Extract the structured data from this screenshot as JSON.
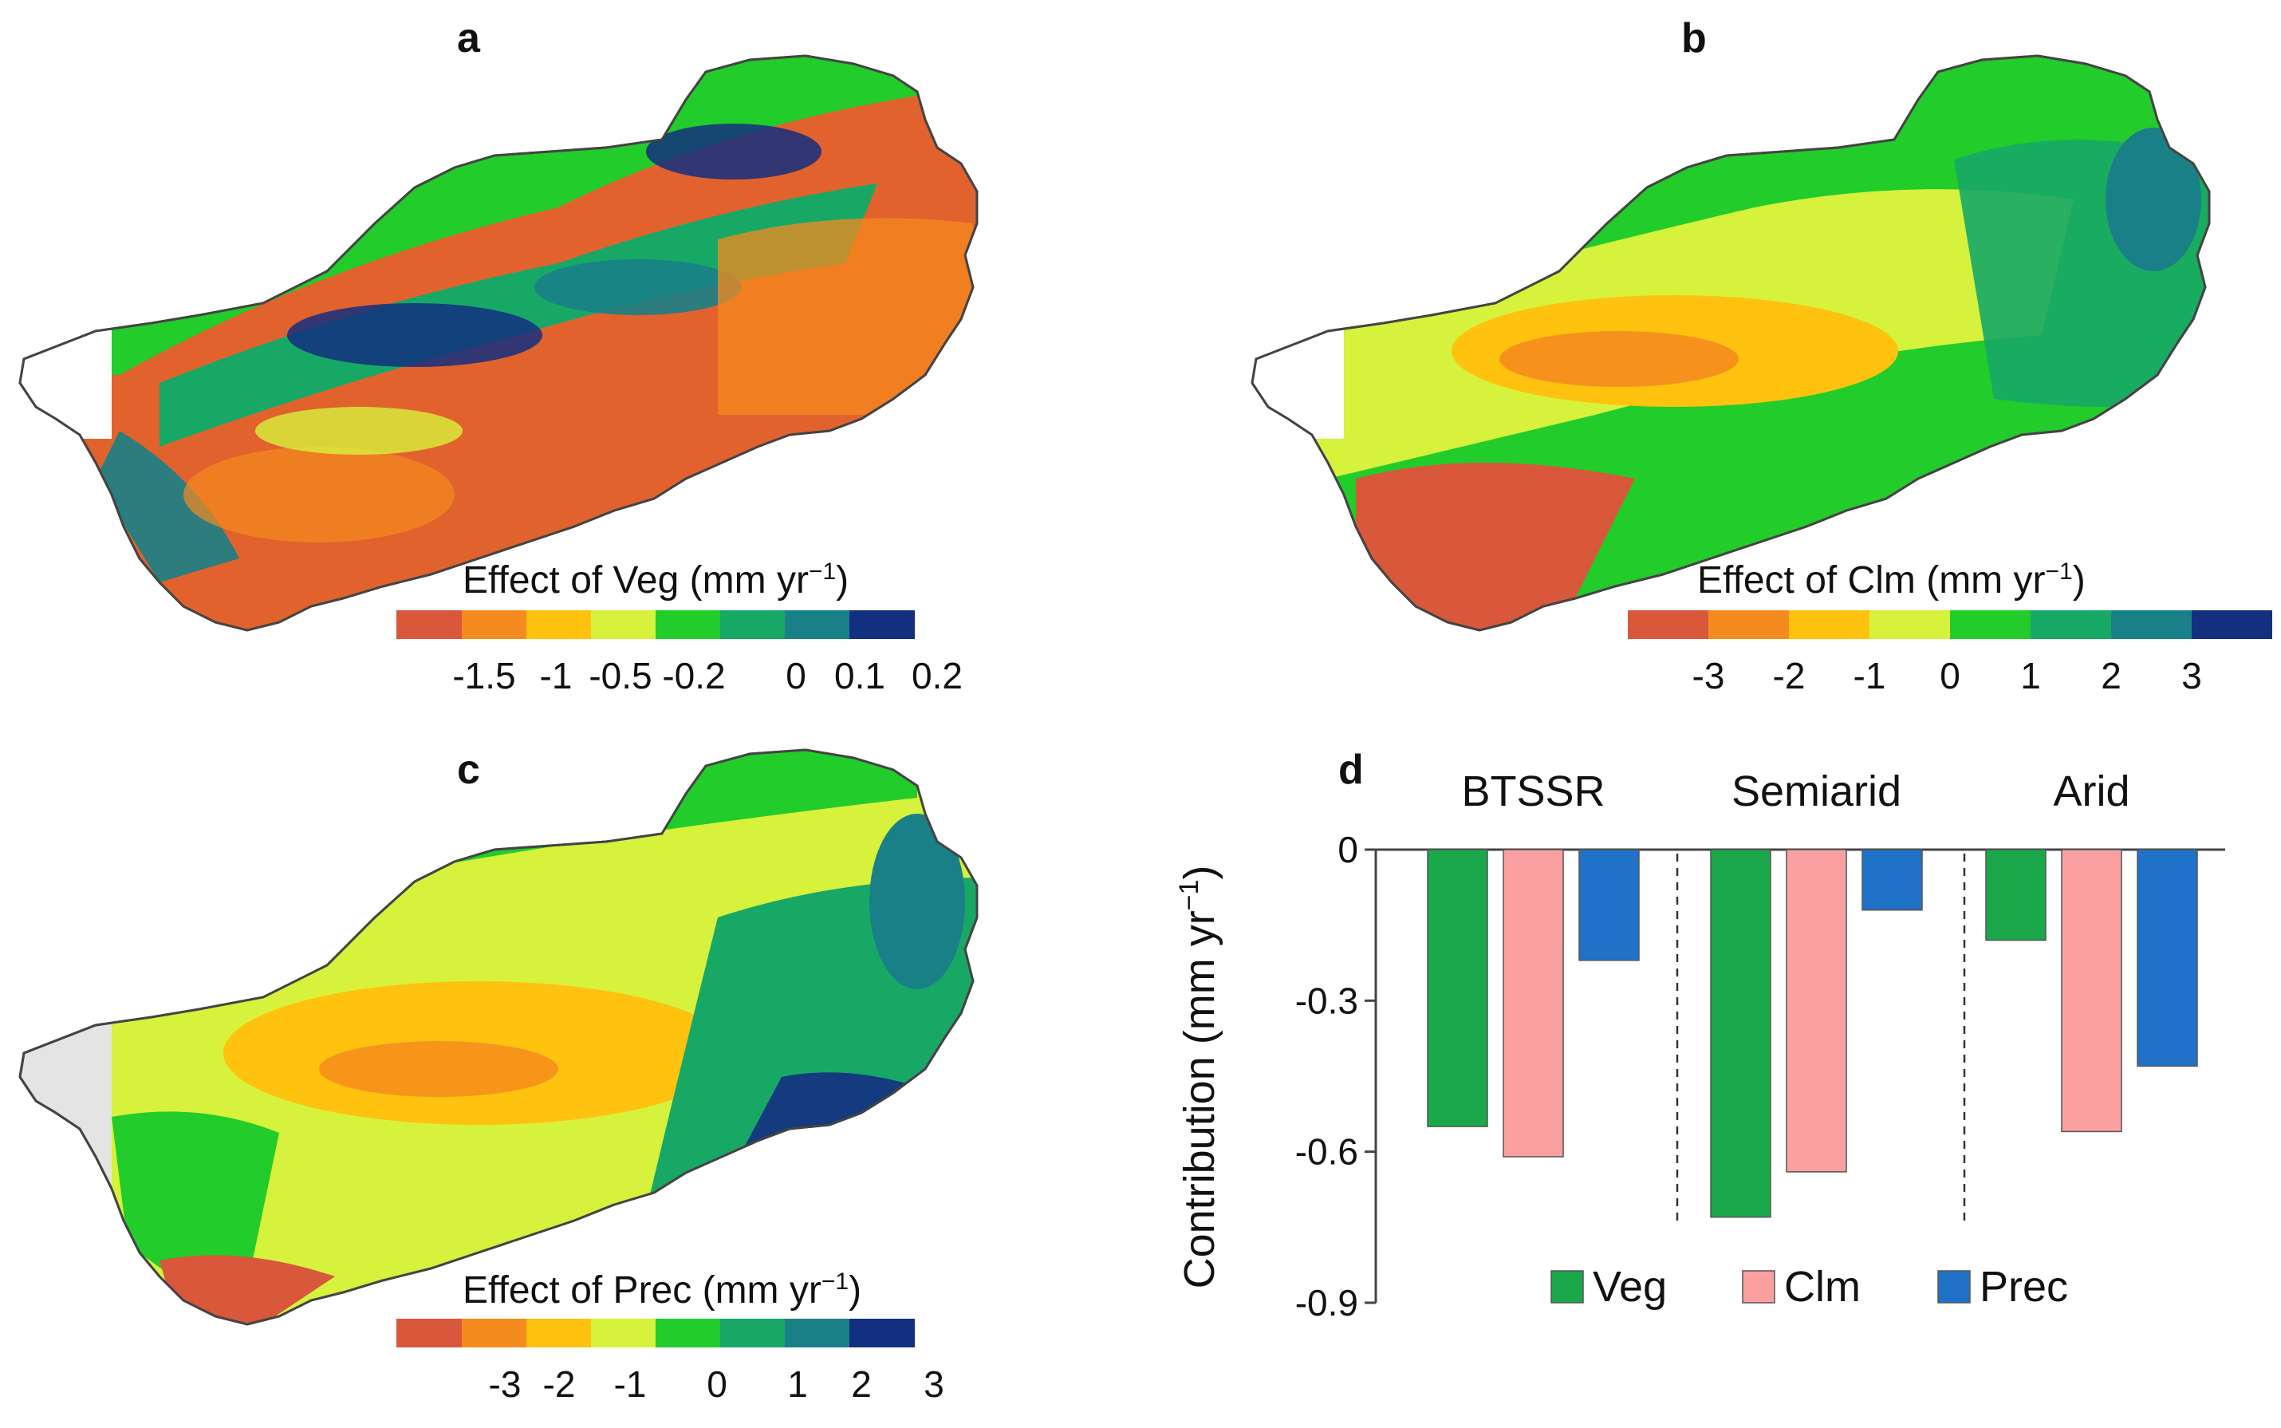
{
  "panels": {
    "a": {
      "letter": "a",
      "colorbar_title": "Effect of Veg (mm yr",
      "colorbar_unit_sup": "−1",
      "colorbar_close": ")",
      "ticks": [
        "-1.5",
        "-1",
        "-0.5",
        "-0.2",
        "0",
        "0.1",
        "0.2"
      ]
    },
    "b": {
      "letter": "b",
      "colorbar_title": "Effect of Clm (mm yr",
      "colorbar_unit_sup": "−1",
      "colorbar_close": ")",
      "ticks": [
        "-3",
        "-2",
        "-1",
        "0",
        "1",
        "2",
        "3"
      ]
    },
    "c": {
      "letter": "c",
      "colorbar_title": "Effect of Prec (mm yr",
      "colorbar_unit_sup": "−1",
      "colorbar_close": ")",
      "ticks": [
        "-3",
        "-2",
        "-1",
        "0",
        "1",
        "2",
        "3"
      ]
    },
    "d": {
      "letter": "d"
    }
  },
  "palette": [
    "#d9573a",
    "#f58a1f",
    "#ffc20e",
    "#d7f23c",
    "#22cc2a",
    "#17a866",
    "#1a8087",
    "#132f7f"
  ],
  "chart_data": {
    "type": "bar",
    "categories": [
      "BTSSR",
      "Semiarid",
      "Arid"
    ],
    "series": [
      {
        "name": "Veg",
        "color": "#1aa84a",
        "values": [
          -0.55,
          -0.73,
          -0.18
        ]
      },
      {
        "name": "Clm",
        "color": "#fba0a0",
        "values": [
          -0.61,
          -0.64,
          -0.56
        ]
      },
      {
        "name": "Prec",
        "color": "#1f72c8",
        "values": [
          -0.22,
          -0.12,
          -0.43
        ]
      }
    ],
    "ylabel": "Contribution (mm yr",
    "ylabel_sup": "−1",
    "ylabel_close": ")",
    "ylim": [
      -0.9,
      0
    ],
    "yticks": [
      "0",
      "-0.3",
      "-0.6",
      "-0.9"
    ],
    "ytick_values": [
      0,
      -0.3,
      -0.6,
      -0.9
    ],
    "legend_position": "bottom-right"
  }
}
